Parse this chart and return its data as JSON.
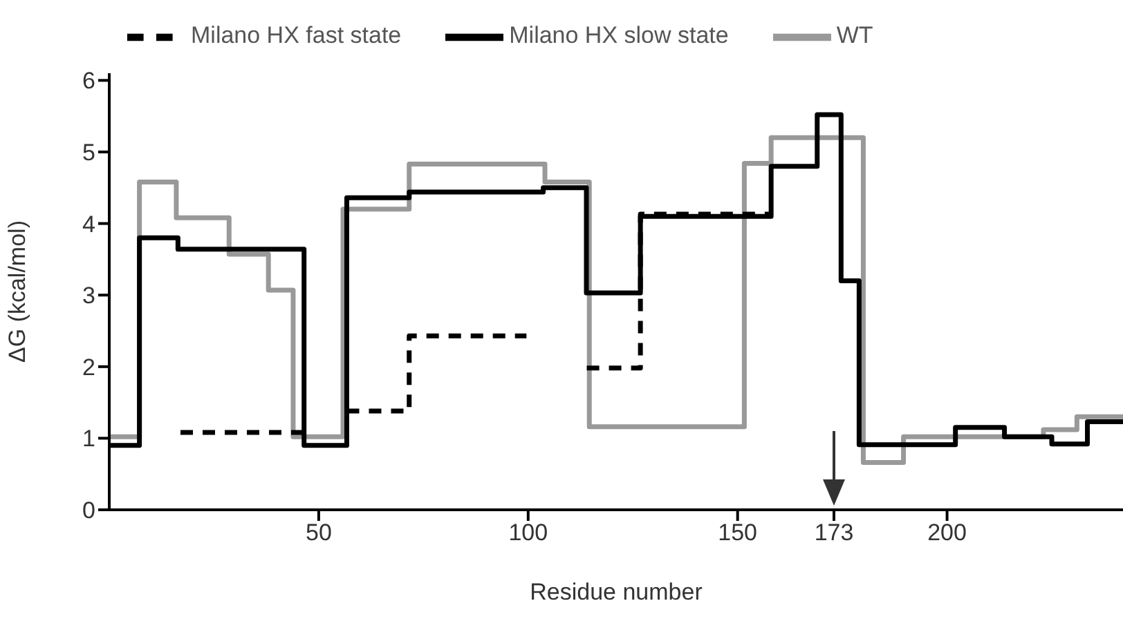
{
  "chart_data": {
    "type": "step",
    "xlabel": "Residue number",
    "ylabel": "ΔG (kcal/mol)",
    "xlim": [
      0,
      242
    ],
    "xticks": [
      50,
      100,
      150,
      173,
      200
    ],
    "ylim": [
      0,
      6.1
    ],
    "yticks": [
      0,
      1,
      2,
      3,
      4,
      5,
      6
    ],
    "grid": false,
    "legend": "top",
    "marker": "none",
    "series": [
      {
        "name": "WT",
        "color": "#999999",
        "line_style": "solid",
        "x": [
          0,
          7.2,
          16,
          28.6,
          38,
          43.9,
          55.8,
          71.6,
          104,
          114.6,
          151.6,
          158,
          180,
          189.6,
          223,
          231,
          242
        ],
        "values": [
          1.02,
          4.58,
          4.08,
          3.57,
          3.07,
          1.02,
          4.2,
          4.83,
          4.58,
          1.16,
          4.84,
          5.2,
          0.66,
          1.02,
          1.12,
          1.3,
          1.3
        ]
      },
      {
        "name": "Milano HX slow state",
        "color": "#000000",
        "line_style": "solid",
        "x": [
          0,
          7.2,
          16.4,
          46.5,
          56.7,
          71.6,
          103.6,
          113.9,
          126.8,
          158,
          169,
          174.7,
          179,
          202,
          213.7,
          225,
          233.5,
          242
        ],
        "values": [
          0.9,
          3.8,
          3.64,
          0.9,
          4.36,
          4.44,
          4.5,
          3.03,
          4.1,
          4.8,
          5.52,
          3.2,
          0.91,
          1.15,
          1.02,
          0.92,
          1.23,
          1.23
        ]
      },
      {
        "name": "Milano HX fast state",
        "color": "#000000",
        "line_style": "dashed",
        "x": [
          17,
          46.5,
          47,
          56.7,
          71.6,
          99.6,
          100,
          114,
          126.8,
          158
        ],
        "values": [
          1.08,
          1.08,
          null,
          1.38,
          2.43,
          2.43,
          null,
          1.98,
          4.13,
          4.13
        ]
      }
    ]
  }
}
